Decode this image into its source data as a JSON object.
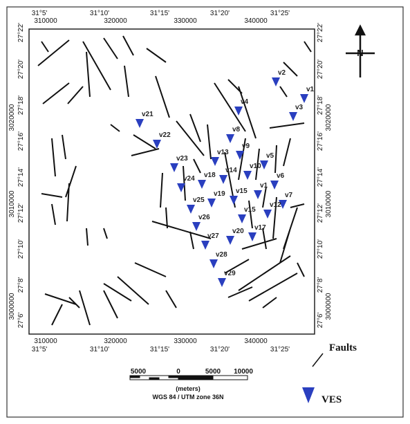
{
  "north": "N",
  "axes": {
    "top_lon": [
      "31°5'",
      "31°10'",
      "31°15'",
      "31°20'",
      "31°25'"
    ],
    "top_utm": [
      "310000",
      "320000",
      "330000",
      "340000"
    ],
    "bottom_utm": [
      "310000",
      "320000",
      "330000",
      "340000"
    ],
    "bottom_lon": [
      "31°5'",
      "31°10'",
      "31°15'",
      "31°20'",
      "31°25'"
    ],
    "left_lat": [
      "27°22'",
      "27°20'",
      "27°18'",
      "27°16'",
      "27°14'",
      "27°12'",
      "27°10'",
      "27°8'",
      "27°6'"
    ],
    "left_utm": [
      "3020000",
      "3010000",
      "3000000"
    ],
    "right_lat": [
      "27°22'",
      "27°20'",
      "27°18'",
      "27°16'",
      "27°14'",
      "27°12'",
      "27°10'",
      "27°8'",
      "27°6'"
    ],
    "right_utm": [
      "3020000",
      "3010000",
      "3000000"
    ]
  },
  "stations": [
    "v21",
    "v22",
    "v23",
    "v24",
    "v25",
    "v26",
    "v27",
    "v28",
    "v29",
    "v18",
    "v19",
    "v13",
    "v14",
    "v15",
    "v15",
    "v20",
    "v17",
    "v8",
    "v9",
    "v4",
    "v10",
    "v1",
    "v5",
    "v6",
    "v7",
    "v12",
    "v3",
    "v2",
    "v1"
  ],
  "legend": [
    "Faults",
    "VES"
  ],
  "scale_bar": {
    "labels": [
      "5000",
      "0",
      "5000",
      "10000"
    ],
    "units": "(meters)",
    "projection": "WGS 84 / UTM zone 36N"
  }
}
